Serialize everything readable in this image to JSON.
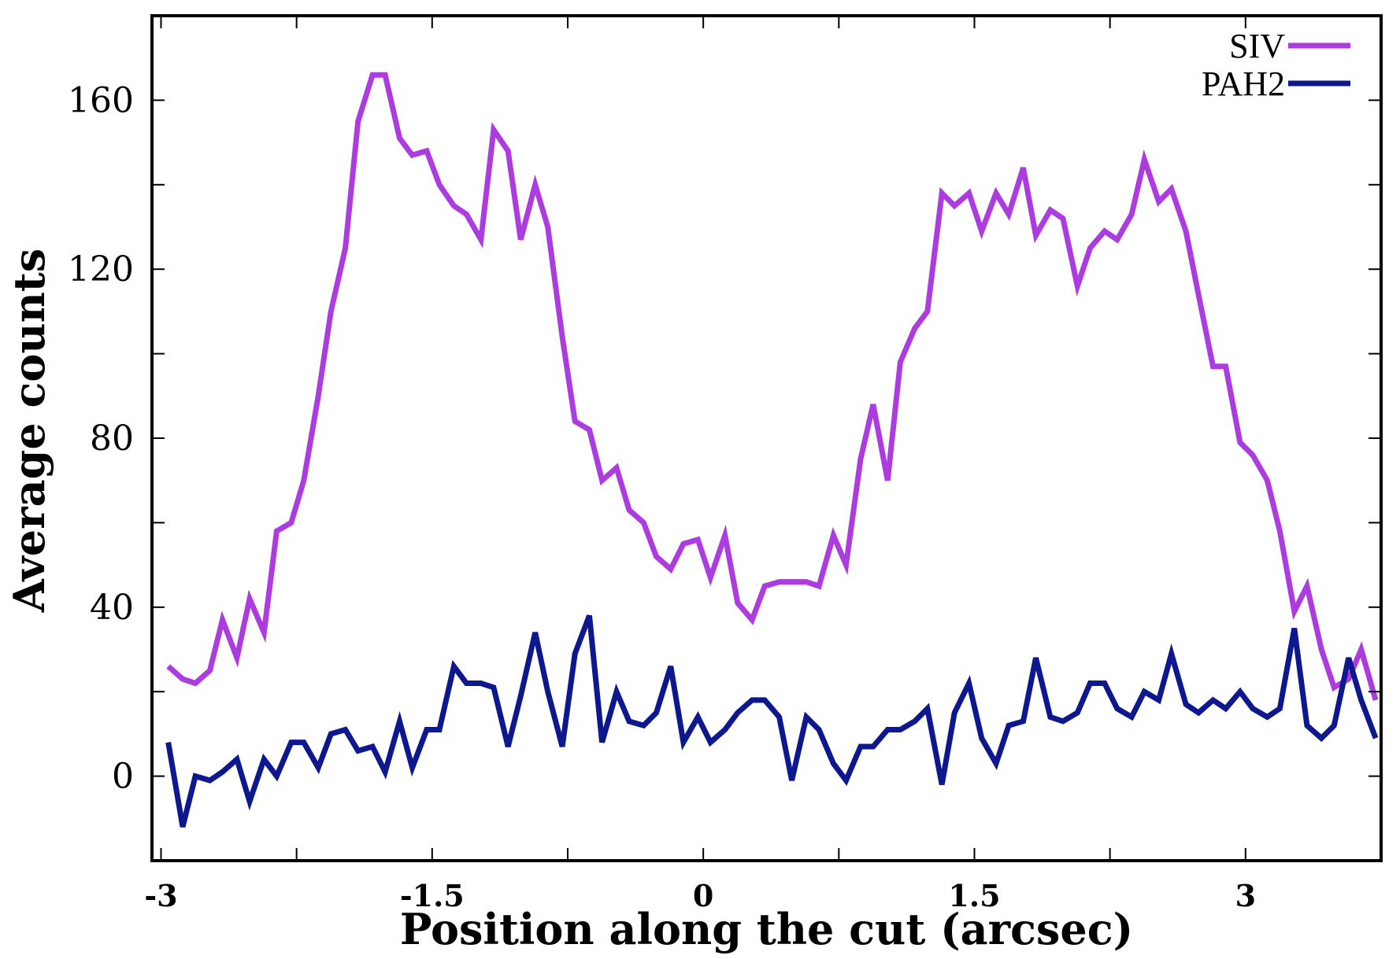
{
  "chart_data": {
    "type": "line",
    "xlabel": "Position along the cut (arcsec)",
    "ylabel": "Average counts",
    "xlim": [
      -3.05,
      3.75
    ],
    "ylim": [
      -20,
      180
    ],
    "x_ticks": [
      -3,
      -1.5,
      0,
      1.5,
      3
    ],
    "x_tick_labels": [
      "-3",
      "-1.5",
      "0",
      "1.5",
      "3"
    ],
    "x_minor_ticks": [
      -2.25,
      -0.75,
      0.75,
      2.25
    ],
    "y_ticks": [
      0,
      40,
      80,
      120,
      160
    ],
    "y_tick_labels": [
      "0",
      "40",
      "80",
      "120",
      "160"
    ],
    "y_minor_ticks": [
      20,
      60,
      100,
      140
    ],
    "grid": false,
    "legend_position": "top-right",
    "x": [
      -2.96,
      -2.88,
      -2.81,
      -2.73,
      -2.66,
      -2.58,
      -2.51,
      -2.43,
      -2.36,
      -2.28,
      -2.21,
      -2.13,
      -2.06,
      -1.98,
      -1.91,
      -1.83,
      -1.76,
      -1.68,
      -1.61,
      -1.53,
      -1.46,
      -1.38,
      -1.31,
      -1.23,
      -1.16,
      -1.08,
      -1.01,
      -0.93,
      -0.86,
      -0.78,
      -0.71,
      -0.63,
      -0.56,
      -0.48,
      -0.41,
      -0.33,
      -0.26,
      -0.18,
      -0.11,
      -0.03,
      0.04,
      0.12,
      0.19,
      0.27,
      0.34,
      0.42,
      0.49,
      0.57,
      0.64,
      0.72,
      0.79,
      0.87,
      0.94,
      1.02,
      1.09,
      1.17,
      1.24,
      1.32,
      1.39,
      1.47,
      1.54,
      1.62,
      1.69,
      1.77,
      1.84,
      1.92,
      1.99,
      2.07,
      2.14,
      2.22,
      2.29,
      2.37,
      2.44,
      2.52,
      2.59,
      2.67,
      2.74,
      2.82,
      2.89,
      2.97,
      3.04,
      3.12,
      3.19,
      3.27,
      3.34,
      3.42,
      3.49,
      3.57,
      3.64,
      3.72
    ],
    "series": [
      {
        "name": "SIV",
        "color": "#ac3be0",
        "values": [
          26,
          23,
          22,
          25,
          37,
          28,
          42,
          34,
          58,
          60,
          70,
          90,
          110,
          125,
          155,
          166,
          166,
          151,
          147,
          148,
          140,
          135,
          133,
          127,
          153,
          148,
          127,
          140,
          130,
          104,
          84,
          82,
          70,
          73,
          63,
          60,
          52,
          49,
          55,
          56,
          47,
          57,
          41,
          37,
          45,
          46,
          46,
          46,
          45,
          57,
          50,
          75,
          88,
          70,
          98,
          106,
          110,
          138,
          135,
          138,
          129,
          138,
          133,
          144,
          128,
          134,
          132,
          116,
          125,
          129,
          127,
          133,
          146,
          136,
          139,
          129,
          114,
          97,
          97,
          79,
          76,
          70,
          58,
          39,
          45,
          30,
          21,
          23,
          30,
          18
        ]
      },
      {
        "name": "PAH2",
        "color": "#0e188e",
        "values": [
          8,
          -12,
          0,
          -1,
          1,
          4,
          -6,
          4,
          0,
          8,
          8,
          2,
          10,
          11,
          6,
          7,
          1,
          13,
          2,
          11,
          11,
          26,
          22,
          22,
          21,
          7,
          19,
          34,
          20,
          7,
          29,
          38,
          8,
          20,
          13,
          12,
          15,
          26,
          8,
          14,
          8,
          11,
          15,
          18,
          18,
          14,
          -1,
          14,
          11,
          3,
          -1,
          7,
          7,
          11,
          11,
          13,
          16,
          -2,
          15,
          22,
          9,
          3,
          12,
          13,
          28,
          14,
          13,
          15,
          22,
          22,
          16,
          14,
          20,
          18,
          29,
          17,
          15,
          18,
          16,
          20,
          16,
          14,
          16,
          35,
          12,
          9,
          12,
          28,
          18,
          9
        ]
      }
    ]
  }
}
